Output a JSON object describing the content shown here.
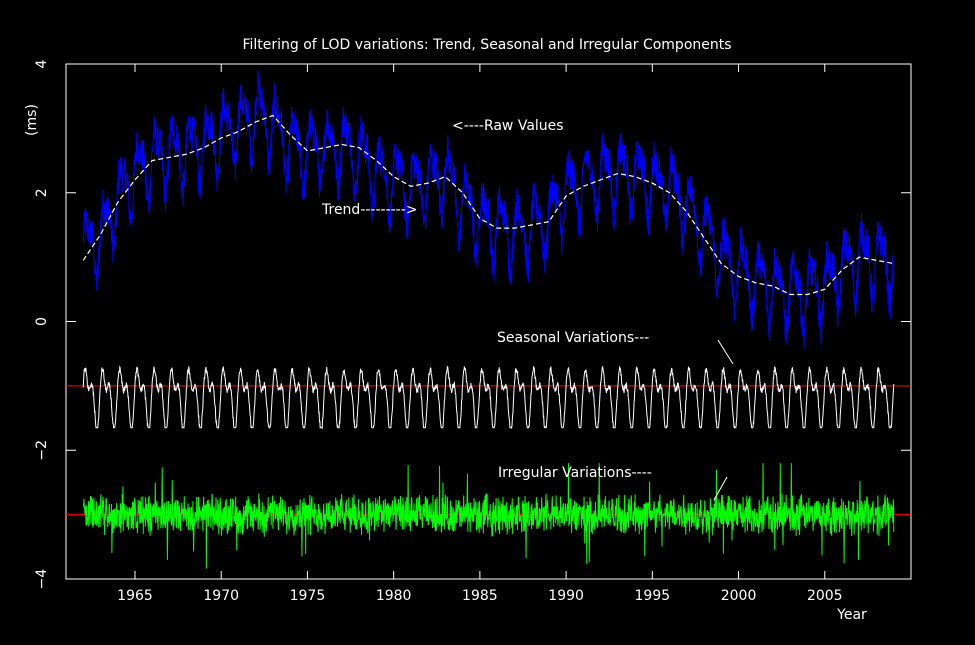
{
  "chart_data": {
    "type": "line",
    "title": "Filtering of LOD variations: Trend, Seasonal and Irregular Components",
    "xlabel": "Year",
    "ylabel": "(ms)",
    "xlim": [
      1961,
      2010
    ],
    "ylim": [
      -4,
      4
    ],
    "x_ticks": [
      1965,
      1970,
      1975,
      1980,
      1985,
      1990,
      1995,
      2000,
      2005
    ],
    "y_ticks": [
      4,
      2,
      0,
      -2,
      -4
    ],
    "grid": false,
    "annotations": {
      "raw": "<----Raw Values",
      "trend": "Trend--------->",
      "seasonal": "Seasonal Variations---",
      "irregular": "Irregular Variations----"
    },
    "reference_lines": [
      {
        "y": -1.0,
        "color": "#ff0000"
      },
      {
        "y": -3.0,
        "color": "#ff0000"
      }
    ],
    "series": [
      {
        "color": "#0000ff",
        "role": "raw",
        "x": [
          1962,
          1963,
          1964,
          1965,
          1966,
          1967,
          1968,
          1969,
          1970,
          1971,
          1972,
          1973,
          1974,
          1975,
          1976,
          1977,
          1978,
          1979,
          1980,
          1981,
          1982,
          1983,
          1984,
          1985,
          1986,
          1987,
          1988,
          1989,
          1990,
          1991,
          1992,
          1993,
          1994,
          1995,
          1996,
          1997,
          1998,
          1999,
          2000,
          2001,
          2002,
          2003,
          2004,
          2005,
          2006,
          2007,
          2008,
          2009
        ],
        "y": [
          1.1,
          1.3,
          1.9,
          2.3,
          2.5,
          2.6,
          2.65,
          2.75,
          2.95,
          3.0,
          3.25,
          3.05,
          2.7,
          2.65,
          2.7,
          2.75,
          2.6,
          2.3,
          2.2,
          2.1,
          2.15,
          2.3,
          1.8,
          1.6,
          1.45,
          1.4,
          1.45,
          1.6,
          2.0,
          2.15,
          2.25,
          2.3,
          2.25,
          2.15,
          2.1,
          1.8,
          1.4,
          1.0,
          0.8,
          0.65,
          0.55,
          0.45,
          0.45,
          0.55,
          0.8,
          1.0,
          0.95,
          0.9
        ]
      },
      {
        "color": "#ffffff",
        "role": "trend",
        "x": [
          1962,
          1963,
          1964,
          1965,
          1966,
          1967,
          1968,
          1969,
          1970,
          1971,
          1972,
          1973,
          1974,
          1975,
          1976,
          1977,
          1978,
          1979,
          1980,
          1981,
          1982,
          1983,
          1984,
          1985,
          1986,
          1987,
          1988,
          1989,
          1990,
          1991,
          1992,
          1993,
          1994,
          1995,
          1996,
          1997,
          1998,
          1999,
          2000,
          2001,
          2002,
          2003,
          2004,
          2005,
          2006,
          2007,
          2008,
          2009
        ],
        "y": [
          0.95,
          1.35,
          1.85,
          2.2,
          2.5,
          2.55,
          2.6,
          2.7,
          2.85,
          2.95,
          3.1,
          3.2,
          2.9,
          2.65,
          2.7,
          2.75,
          2.7,
          2.5,
          2.25,
          2.1,
          2.15,
          2.25,
          2.0,
          1.6,
          1.45,
          1.45,
          1.5,
          1.55,
          1.95,
          2.1,
          2.2,
          2.3,
          2.25,
          2.15,
          2.0,
          1.7,
          1.3,
          0.9,
          0.7,
          0.6,
          0.55,
          0.42,
          0.42,
          0.5,
          0.8,
          1.0,
          0.95,
          0.9
        ]
      },
      {
        "color": "#ffffff",
        "role": "seasonal",
        "period_years": 1.0,
        "center": -1.0,
        "high": -0.65,
        "low": -1.65,
        "x_range": [
          1962,
          2009
        ]
      },
      {
        "color": "#00ff00",
        "role": "irregular",
        "center": -3.0,
        "typical_range": [
          -3.4,
          -2.6
        ],
        "extremes": [
          -4.0,
          -2.2
        ],
        "x_range": [
          1962,
          2009
        ]
      }
    ]
  }
}
